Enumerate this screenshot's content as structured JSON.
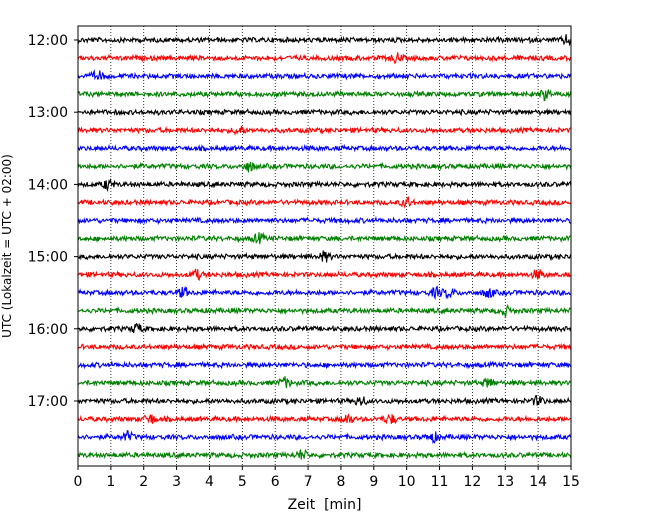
{
  "chart_data": {
    "type": "line",
    "title": "",
    "xlabel": "Zeit  [min]",
    "ylabel": "UTC (Lokalzeit = UTC + 02:00)",
    "xlim": [
      0,
      15
    ],
    "x_ticks": [
      "0",
      "1",
      "2",
      "3",
      "4",
      "5",
      "6",
      "7",
      "8",
      "9",
      "10",
      "11",
      "12",
      "13",
      "14",
      "15"
    ],
    "y_ticks": [
      "12:00",
      "13:00",
      "14:00",
      "15:00",
      "16:00",
      "17:00"
    ],
    "grid": "vertical dotted",
    "legend": "none",
    "trace_interval_min": 15,
    "color_cycle": [
      "#000000",
      "#ff0000",
      "#0000ff",
      "#008000"
    ],
    "series": [
      {
        "start": "12:00",
        "color": "#000000",
        "events_min": [
          14.9
        ]
      },
      {
        "start": "12:15",
        "color": "#ff0000",
        "events_min": [
          9.7
        ]
      },
      {
        "start": "12:30",
        "color": "#0000ff",
        "events_min": [
          0.6
        ]
      },
      {
        "start": "12:45",
        "color": "#008000",
        "events_min": [
          14.2
        ]
      },
      {
        "start": "13:00",
        "color": "#000000",
        "events_min": []
      },
      {
        "start": "13:15",
        "color": "#ff0000",
        "events_min": [
          4.9
        ]
      },
      {
        "start": "13:30",
        "color": "#0000ff",
        "events_min": []
      },
      {
        "start": "13:45",
        "color": "#008000",
        "events_min": [
          5.2
        ]
      },
      {
        "start": "14:00",
        "color": "#000000",
        "events_min": [
          0.9
        ]
      },
      {
        "start": "14:15",
        "color": "#ff0000",
        "events_min": [
          10.0
        ]
      },
      {
        "start": "14:30",
        "color": "#0000ff",
        "events_min": []
      },
      {
        "start": "14:45",
        "color": "#008000",
        "events_min": [
          5.5
        ]
      },
      {
        "start": "15:00",
        "color": "#000000",
        "events_min": [
          7.5
        ]
      },
      {
        "start": "15:15",
        "color": "#ff0000",
        "events_min": [
          3.6,
          14.0
        ]
      },
      {
        "start": "15:30",
        "color": "#0000ff",
        "events_min": [
          3.2,
          10.9,
          11.3,
          12.5
        ]
      },
      {
        "start": "15:45",
        "color": "#008000",
        "events_min": [
          13.0
        ]
      },
      {
        "start": "16:00",
        "color": "#000000",
        "events_min": [
          1.8
        ]
      },
      {
        "start": "16:15",
        "color": "#ff0000",
        "events_min": []
      },
      {
        "start": "16:30",
        "color": "#0000ff",
        "events_min": []
      },
      {
        "start": "16:45",
        "color": "#008000",
        "events_min": [
          6.3,
          12.5
        ]
      },
      {
        "start": "17:00",
        "color": "#000000",
        "events_min": [
          8.6,
          14.0
        ]
      },
      {
        "start": "17:15",
        "color": "#ff0000",
        "events_min": [
          2.2,
          8.2,
          9.5
        ]
      },
      {
        "start": "17:30",
        "color": "#0000ff",
        "events_min": [
          1.5,
          10.8
        ]
      },
      {
        "start": "17:45",
        "color": "#008000",
        "events_min": [
          6.8
        ]
      }
    ]
  }
}
